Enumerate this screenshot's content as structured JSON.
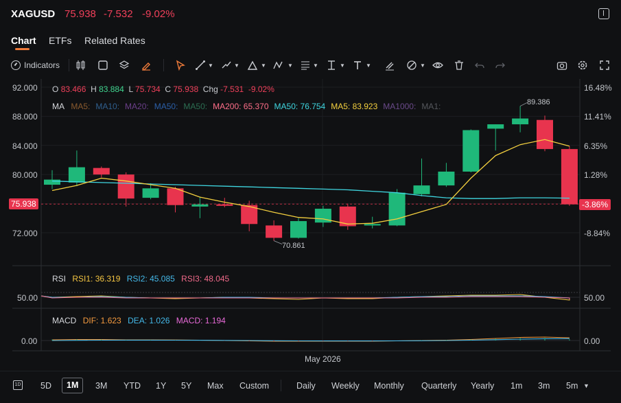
{
  "header": {
    "symbol": "XAGUSD",
    "price": "75.938",
    "change": "-7.532",
    "change_pct": "-9.02%"
  },
  "tabs": [
    {
      "label": "Chart",
      "active": true
    },
    {
      "label": "ETFs",
      "active": false
    },
    {
      "label": "Related Rates",
      "active": false
    }
  ],
  "toolbar": {
    "indicators_label": "Indicators"
  },
  "ohlc": {
    "o_label": "O",
    "o": "83.466",
    "h_label": "H",
    "h": "83.884",
    "l_label": "L",
    "l": "75.734",
    "c_label": "C",
    "c": "75.938",
    "chg_label": "Chg",
    "chg": "-7.531",
    "chg_pct": "-9.02%"
  },
  "ma_legend": {
    "title": "MA",
    "items": [
      {
        "text": "MA5:",
        "color": "#8a5a2e"
      },
      {
        "text": "MA10:",
        "color": "#2f5f8e"
      },
      {
        "text": "MA20:",
        "color": "#6b3f8a"
      },
      {
        "text": "MA50:",
        "color": "#2b5fa8"
      },
      {
        "text": "MA50:",
        "color": "#2c6e52"
      },
      {
        "text": "MA200: 65.370",
        "color": "#ff6f8a"
      },
      {
        "text": "MA50: 76.754",
        "color": "#3fd6e0"
      },
      {
        "text": "MA5: 83.923",
        "color": "#f4d03f"
      },
      {
        "text": "MA1000:",
        "color": "#6a4a8a"
      },
      {
        "text": "MA1:",
        "color": "#55575c"
      }
    ]
  },
  "annotations": {
    "high": "89.386",
    "low": "70.861"
  },
  "price_axis": [
    "92.000",
    "88.000",
    "84.000",
    "80.000",
    "76.000",
    "72.000"
  ],
  "pct_axis": [
    "16.48%",
    "11.41%",
    "6.35%",
    "1.28%",
    "-3.86%",
    "-8.84%"
  ],
  "current_price_tag": "75.938",
  "current_pct_tag": "-3.86%",
  "rsi": {
    "title": "RSI",
    "rsi1": "RSI1: 36.319",
    "rsi2": "RSI2: 45.085",
    "rsi3": "RSI3: 48.045",
    "axis_left": "50.00",
    "axis_right": "50.00"
  },
  "macd": {
    "title": "MACD",
    "dif": "DIF: 1.623",
    "dea": "DEA: 1.026",
    "macd": "MACD: 1.194",
    "axis_left": "0.00",
    "axis_right": "0.00"
  },
  "x_axis_label": "May 2026",
  "periods": [
    "5D",
    "1M",
    "3M",
    "YTD",
    "1Y",
    "5Y",
    "Max",
    "Custom"
  ],
  "selected_period": "1M",
  "intervals": [
    "Daily",
    "Weekly",
    "Monthly",
    "Quarterly",
    "Yearly",
    "1m",
    "3m",
    "5m"
  ],
  "colors": {
    "up": "#1fb87a",
    "down": "#e8344e",
    "ma50": "#3fd6e0",
    "ma5": "#f4d03f",
    "accent": "#f07b3a"
  },
  "chart_data": {
    "type": "candlestick",
    "y_range": [
      68,
      93
    ],
    "candles": [
      {
        "o": 78.6,
        "h": 80.6,
        "l": 78.0,
        "c": 79.3
      },
      {
        "o": 78.9,
        "h": 83.3,
        "l": 78.4,
        "c": 81.0
      },
      {
        "o": 80.9,
        "h": 81.1,
        "l": 79.6,
        "c": 80.0
      },
      {
        "o": 80.0,
        "h": 80.3,
        "l": 75.6,
        "c": 76.7
      },
      {
        "o": 76.8,
        "h": 78.8,
        "l": 76.6,
        "c": 78.1
      },
      {
        "o": 78.1,
        "h": 78.3,
        "l": 74.8,
        "c": 75.8
      },
      {
        "o": 75.6,
        "h": 76.9,
        "l": 74.0,
        "c": 75.9
      },
      {
        "o": 75.9,
        "h": 76.8,
        "l": 75.5,
        "c": 75.7
      },
      {
        "o": 75.8,
        "h": 76.4,
        "l": 72.2,
        "c": 73.2
      },
      {
        "o": 73.0,
        "h": 73.7,
        "l": 70.9,
        "c": 71.3
      },
      {
        "o": 71.3,
        "h": 74.0,
        "l": 71.2,
        "c": 73.6
      },
      {
        "o": 73.4,
        "h": 75.7,
        "l": 72.8,
        "c": 75.3
      },
      {
        "o": 75.6,
        "h": 76.0,
        "l": 72.4,
        "c": 72.9
      },
      {
        "o": 73.0,
        "h": 74.2,
        "l": 72.6,
        "c": 73.2
      },
      {
        "o": 73.0,
        "h": 78.0,
        "l": 72.9,
        "c": 77.5
      },
      {
        "o": 77.3,
        "h": 82.2,
        "l": 77.0,
        "c": 78.5
      },
      {
        "o": 78.5,
        "h": 81.6,
        "l": 78.3,
        "c": 80.4
      },
      {
        "o": 80.4,
        "h": 86.2,
        "l": 80.3,
        "c": 86.1
      },
      {
        "o": 86.3,
        "h": 86.9,
        "l": 83.3,
        "c": 86.9
      },
      {
        "o": 86.9,
        "h": 89.4,
        "l": 85.8,
        "c": 87.7
      },
      {
        "o": 87.5,
        "h": 88.1,
        "l": 83.2,
        "c": 83.5
      },
      {
        "o": 83.5,
        "h": 83.9,
        "l": 75.7,
        "c": 75.9
      }
    ],
    "ma50": [
      79.1,
      79.0,
      78.9,
      78.8,
      78.7,
      78.6,
      78.5,
      78.4,
      78.3,
      78.2,
      78.1,
      78.0,
      77.9,
      77.7,
      77.5,
      77.1,
      76.8,
      76.7,
      76.7,
      76.8,
      76.8,
      76.75
    ],
    "ma5": [
      77.8,
      78.5,
      79.5,
      79.1,
      78.6,
      78.1,
      76.9,
      76.2,
      75.6,
      74.8,
      74.1,
      73.9,
      73.2,
      73.3,
      73.9,
      74.9,
      75.9,
      79.5,
      82.6,
      84.1,
      84.8,
      83.9
    ]
  }
}
